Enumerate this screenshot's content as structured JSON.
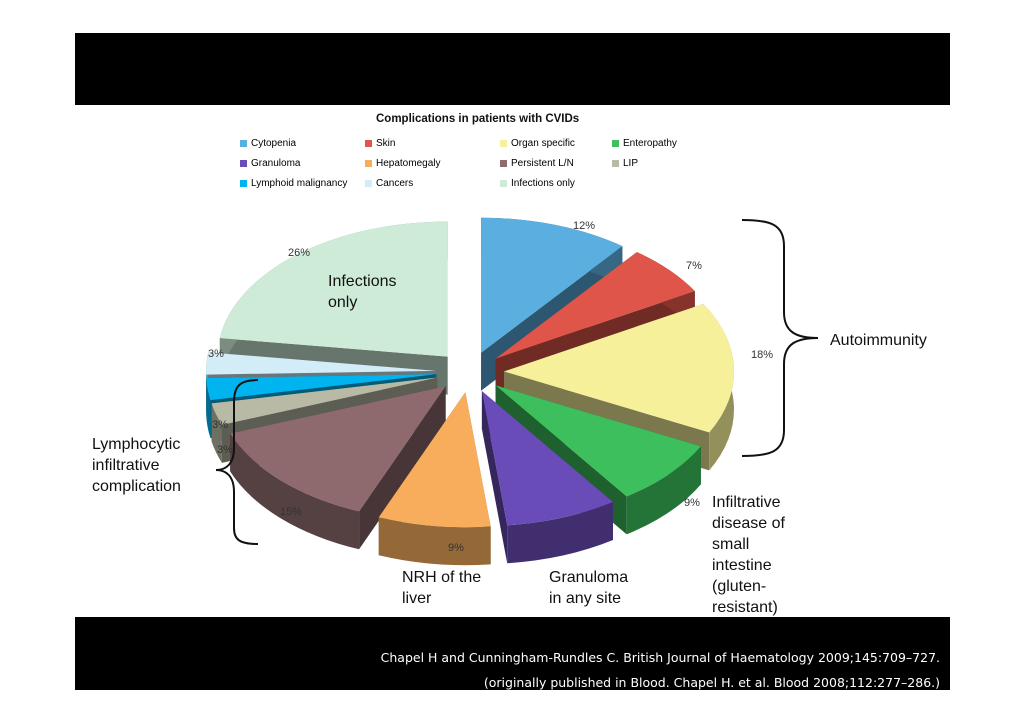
{
  "chart_data": {
    "type": "pie",
    "title": "Complications in patients with CVIDs",
    "legend_placement": "top",
    "slices": [
      {
        "label": "Cytopenia",
        "value": 12,
        "value_label": "12%",
        "color": "#5aaee0"
      },
      {
        "label": "Skin",
        "value": 7,
        "value_label": "7%",
        "color": "#e0554a"
      },
      {
        "label": "Organ specific",
        "value": 18,
        "value_label": "18%",
        "color": "#f7f09a"
      },
      {
        "label": "Enteropathy",
        "value": 9,
        "value_label": "9%",
        "color": "#3cbf5c"
      },
      {
        "label": "Granuloma",
        "value": 9,
        "value_label": "",
        "color": "#6a4cb8"
      },
      {
        "label": "Hepatomegaly",
        "value": 9,
        "value_label": "9%",
        "color": "#f7ad5c"
      },
      {
        "label": "Persistent L/N",
        "value": 15,
        "value_label": "15%",
        "color": "#8e6a6e"
      },
      {
        "label": "LIP",
        "value": 3,
        "value_label": "3%",
        "color": "#b8baa6"
      },
      {
        "label": "Lymphoid malignancy",
        "value": 3,
        "value_label": "3%",
        "color": "#00b4f0"
      },
      {
        "label": "Cancers",
        "value": 3,
        "value_label": "3%",
        "color": "#d2ecf8"
      },
      {
        "label": "Infections only",
        "value": 26,
        "value_label": "26%",
        "color": "#cdebd7"
      }
    ],
    "annotations": {
      "infections": "Infections\nonly",
      "autoimmunity": "Autoimmunity",
      "lymphocytic": "Lymphocytic\ninfiltrative\ncomplication",
      "nrh": "NRH of the\nliver",
      "granuloma": "Granuloma\nin any site",
      "infiltrative": "Infiltrative\ndisease of\nsmall\nintestine\n(gluten-\nresistant)"
    }
  },
  "credits": {
    "line1": "Chapel H and Cunningham-Rundles C. British Journal of Haematology 2009;145:709–727.",
    "line2": "(originally published in Blood. Chapel H. et al. Blood 2008;112:277–286.)"
  }
}
